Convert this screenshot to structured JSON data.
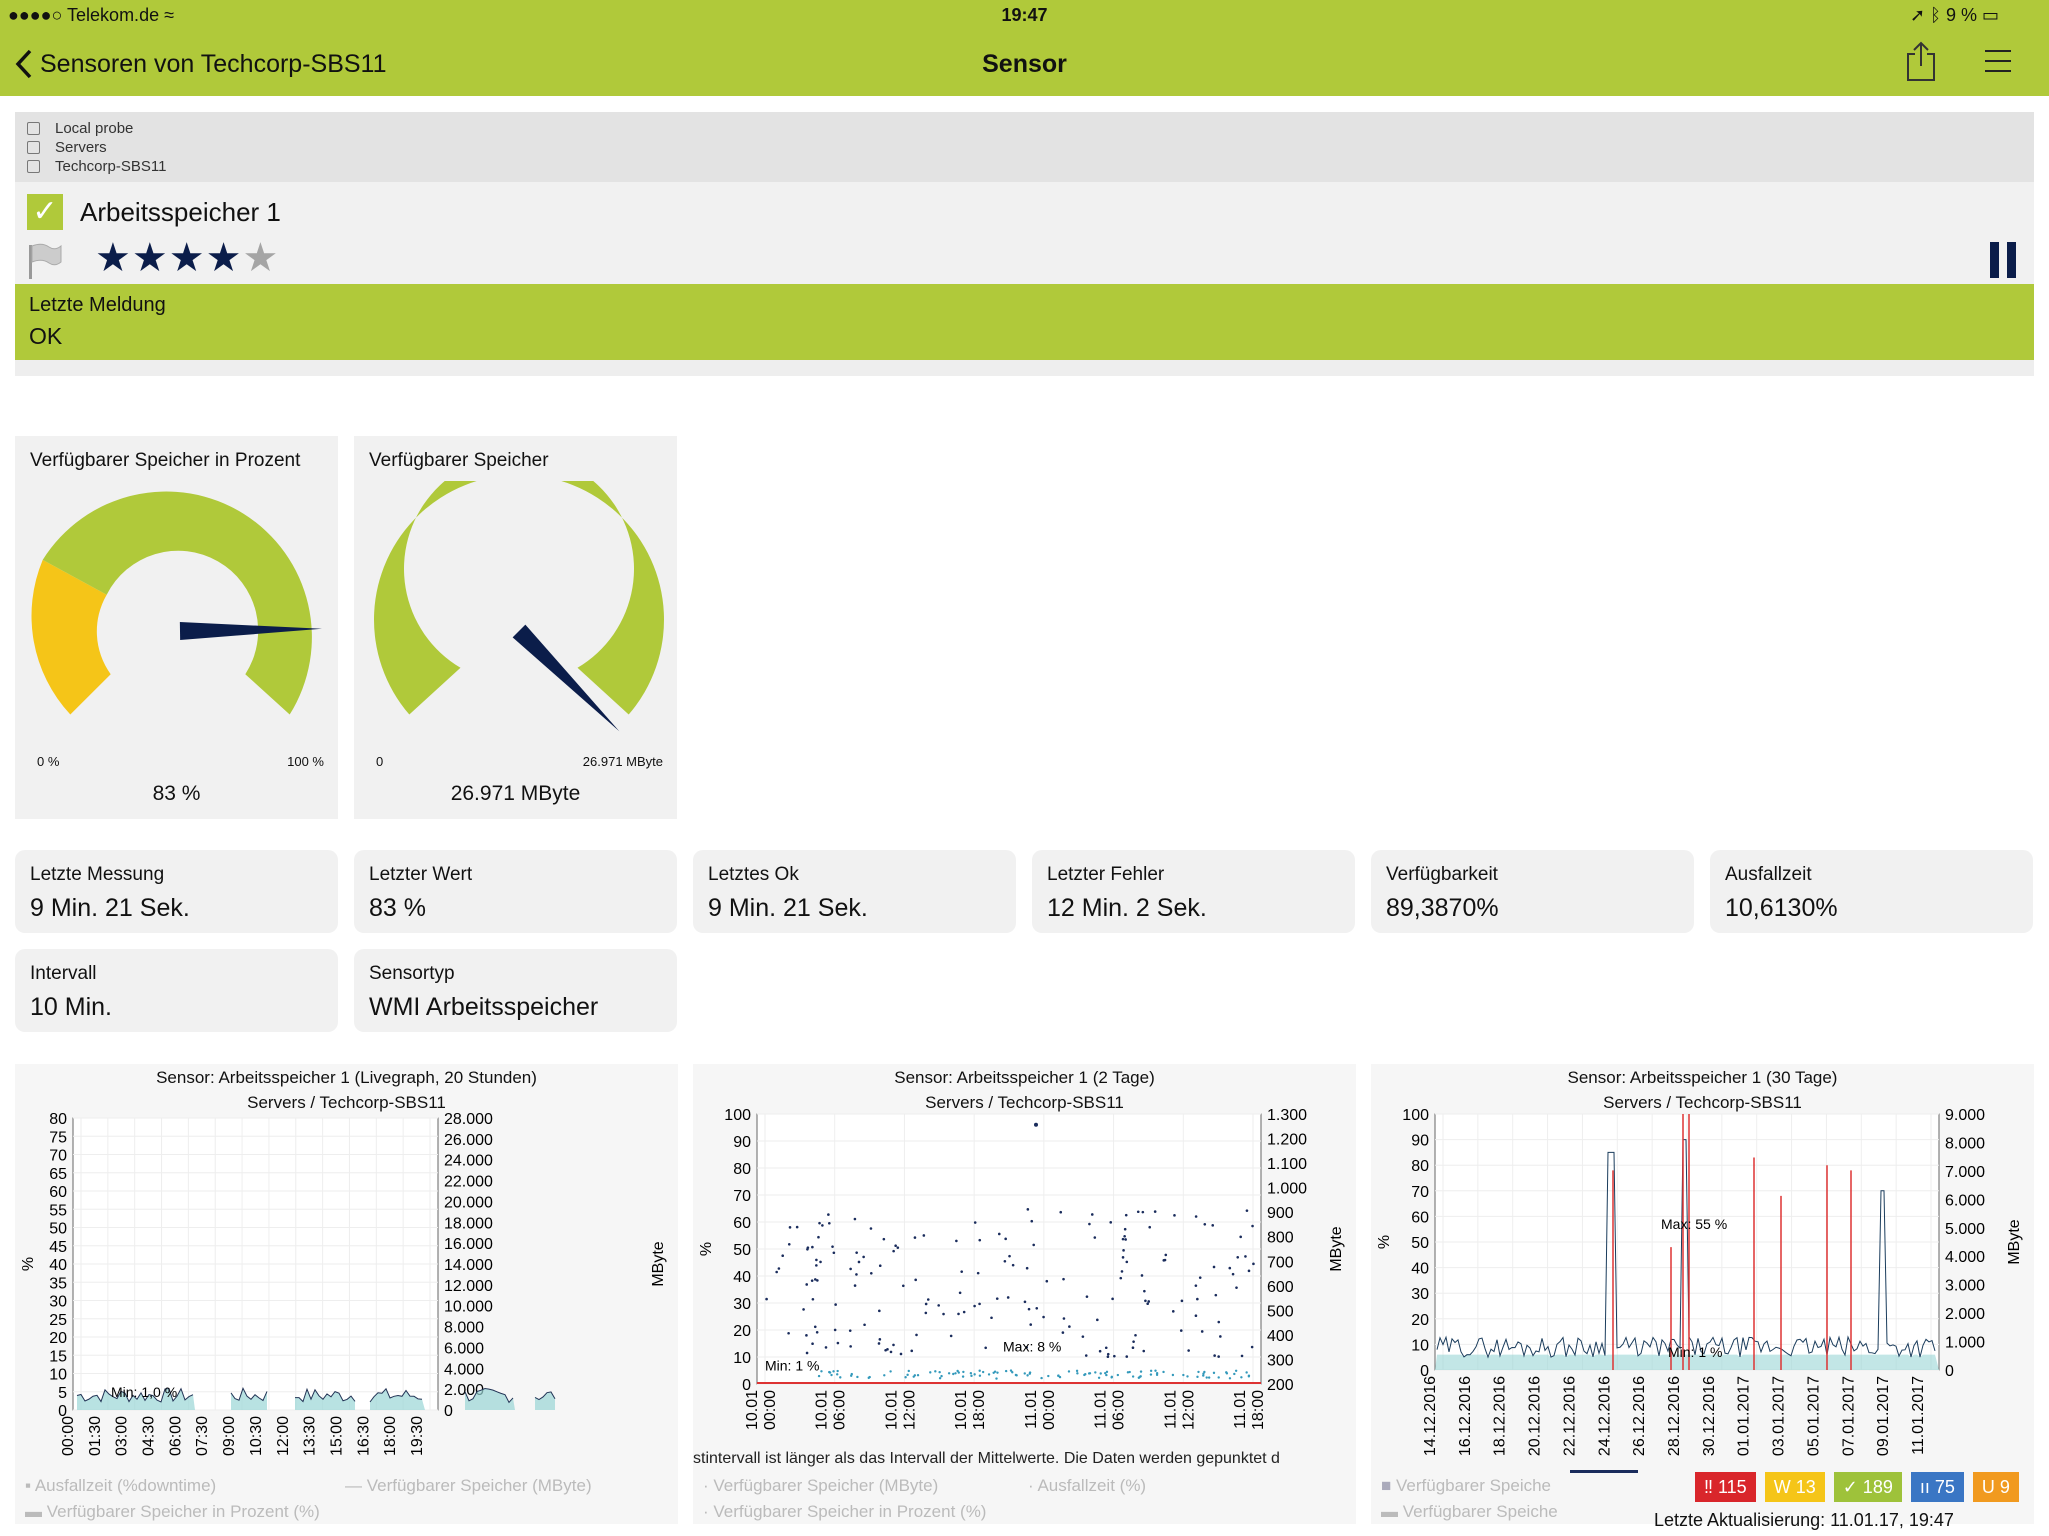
{
  "status_bar": {
    "carrier": "●●●●○ Telekom.de",
    "time": "19:47",
    "battery": "9 %"
  },
  "nav": {
    "back_label": "Sensoren von Techcorp-SBS11",
    "title": "Sensor"
  },
  "breadcrumb": [
    "Local probe",
    "Servers",
    "Techcorp-SBS11"
  ],
  "sensor": {
    "name": "Arbeitsspeicher 1",
    "priority": 4,
    "max_priority": 5,
    "stars": "★★★★",
    "star_off": "★"
  },
  "last_message": {
    "label": "Letzte Meldung",
    "value": "OK"
  },
  "gauges": [
    {
      "title": "Verfügbarer Speicher in Prozent",
      "min": "0 %",
      "max": "100 %",
      "value": "83 %",
      "needle_fraction": 0.83
    },
    {
      "title": "Verfügbarer Speicher",
      "min": "0",
      "max": "26.971 MByte",
      "value": "26.971 MByte",
      "needle_fraction": 1.0
    }
  ],
  "tiles": [
    {
      "label": "Letzte Messung",
      "value": "9 Min. 21 Sek."
    },
    {
      "label": "Letzter Wert",
      "value": "83 %"
    },
    {
      "label": "Letztes Ok",
      "value": "9 Min. 21 Sek."
    },
    {
      "label": "Letzter Fehler",
      "value": "12 Min. 2 Sek."
    },
    {
      "label": "Verfügbarkeit",
      "value": "89,3870%"
    },
    {
      "label": "Ausfallzeit",
      "value": "10,6130%"
    },
    {
      "label": "Intervall",
      "value": "10 Min."
    },
    {
      "label": "Sensortyp",
      "value": "WMI Arbeitsspeicher"
    }
  ],
  "charts": [
    {
      "title": "Sensor: Arbeitsspeicher 1 (Livegraph, 20 Stunden)",
      "subtitle": "Servers / Techcorp-SBS11",
      "annotation": "Min: 1,0 %",
      "legend": [
        "Ausfallzeit (%downtime)",
        "Verfügbarer Speicher (MByte)",
        "Verfügbarer Speicher in Prozent (%)"
      ]
    },
    {
      "title": "Sensor: Arbeitsspeicher 1 (2 Tage)",
      "subtitle": "Servers / Techcorp-SBS11",
      "annotation": "Min: 1 %",
      "annotation2": "Max: 8 %",
      "note": "stintervall ist länger als das Intervall der Mittelwerte. Die Daten werden gepunktet d",
      "legend": [
        "Verfügbarer Speicher (MByte)",
        "Ausfallzeit (%)",
        "Verfügbarer Speicher in Prozent (%)"
      ]
    },
    {
      "title": "Sensor: Arbeitsspeicher 1 (30 Tage)",
      "subtitle": "Servers / Techcorp-SBS11",
      "annotation": "Min: 1 %",
      "annotation2": "Max: 55 %",
      "legend": [
        "Verfügbarer Speiche",
        "Verfügbarer Speiche"
      ]
    }
  ],
  "chart_data": [
    {
      "type": "area",
      "xlabel": "",
      "ylabel": "%",
      "y2label": "MByte",
      "x": [
        "00:00",
        "01:30",
        "03:00",
        "04:30",
        "06:00",
        "07:30",
        "09:00",
        "10:30",
        "12:00",
        "13:30",
        "15:00",
        "16:30",
        "18:00",
        "19:30"
      ],
      "yticks": [
        0,
        5,
        10,
        15,
        20,
        25,
        30,
        35,
        40,
        45,
        50,
        55,
        60,
        65,
        70,
        75,
        80
      ],
      "y2ticks": [
        "0",
        "2.000",
        "4.000",
        "6.000",
        "8.000",
        "10.000",
        "12.000",
        "14.000",
        "16.000",
        "18.000",
        "20.000",
        "22.000",
        "24.000",
        "26.000",
        "28.000"
      ],
      "ylim": [
        0,
        80
      ]
    },
    {
      "type": "scatter",
      "xlabel": "",
      "ylabel": "%",
      "y2label": "MByte",
      "x": [
        "10.01 00:00",
        "10.01 06:00",
        "10.01 12:00",
        "10.01 18:00",
        "11.01 00:00",
        "11.01 06:00",
        "11.01 12:00",
        "11.01 18:00"
      ],
      "yticks": [
        0,
        10,
        20,
        30,
        40,
        50,
        60,
        70,
        80,
        90,
        100
      ],
      "y2ticks": [
        "200",
        "300",
        "400",
        "500",
        "600",
        "700",
        "800",
        "900",
        "1.000",
        "1.100",
        "1.200",
        "1.300"
      ],
      "ylim": [
        0,
        100
      ]
    },
    {
      "type": "line",
      "xlabel": "",
      "ylabel": "%",
      "y2label": "MByte",
      "x": [
        "14.12.2016",
        "16.12.2016",
        "18.12.2016",
        "20.12.2016",
        "22.12.2016",
        "24.12.2016",
        "26.12.2016",
        "28.12.2016",
        "30.12.2016",
        "01.01.2017",
        "03.01.2017",
        "05.01.2017",
        "07.01.2017",
        "09.01.2017",
        "11.01.2017"
      ],
      "yticks": [
        0,
        10,
        20,
        30,
        40,
        50,
        60,
        70,
        80,
        90,
        100
      ],
      "y2ticks": [
        "0",
        "1.000",
        "2.000",
        "3.000",
        "4.000",
        "5.000",
        "6.000",
        "7.000",
        "8.000",
        "9.000"
      ],
      "ylim": [
        0,
        100
      ]
    }
  ],
  "badges": [
    {
      "text": "‼ 115",
      "color": "#d9262b"
    },
    {
      "text": "W 13",
      "color": "#f5c518"
    },
    {
      "text": "✓ 189",
      "color": "#9ec23a"
    },
    {
      "text": "ıı 75",
      "color": "#3a76c4"
    },
    {
      "text": "U 9",
      "color": "#f19a1f"
    }
  ],
  "last_update": "Letzte Aktualisierung: 11.01.17, 19:47",
  "colors": {
    "accent": "#b0c93a",
    "warning": "#f5c518",
    "needle": "#0b1d4a"
  }
}
